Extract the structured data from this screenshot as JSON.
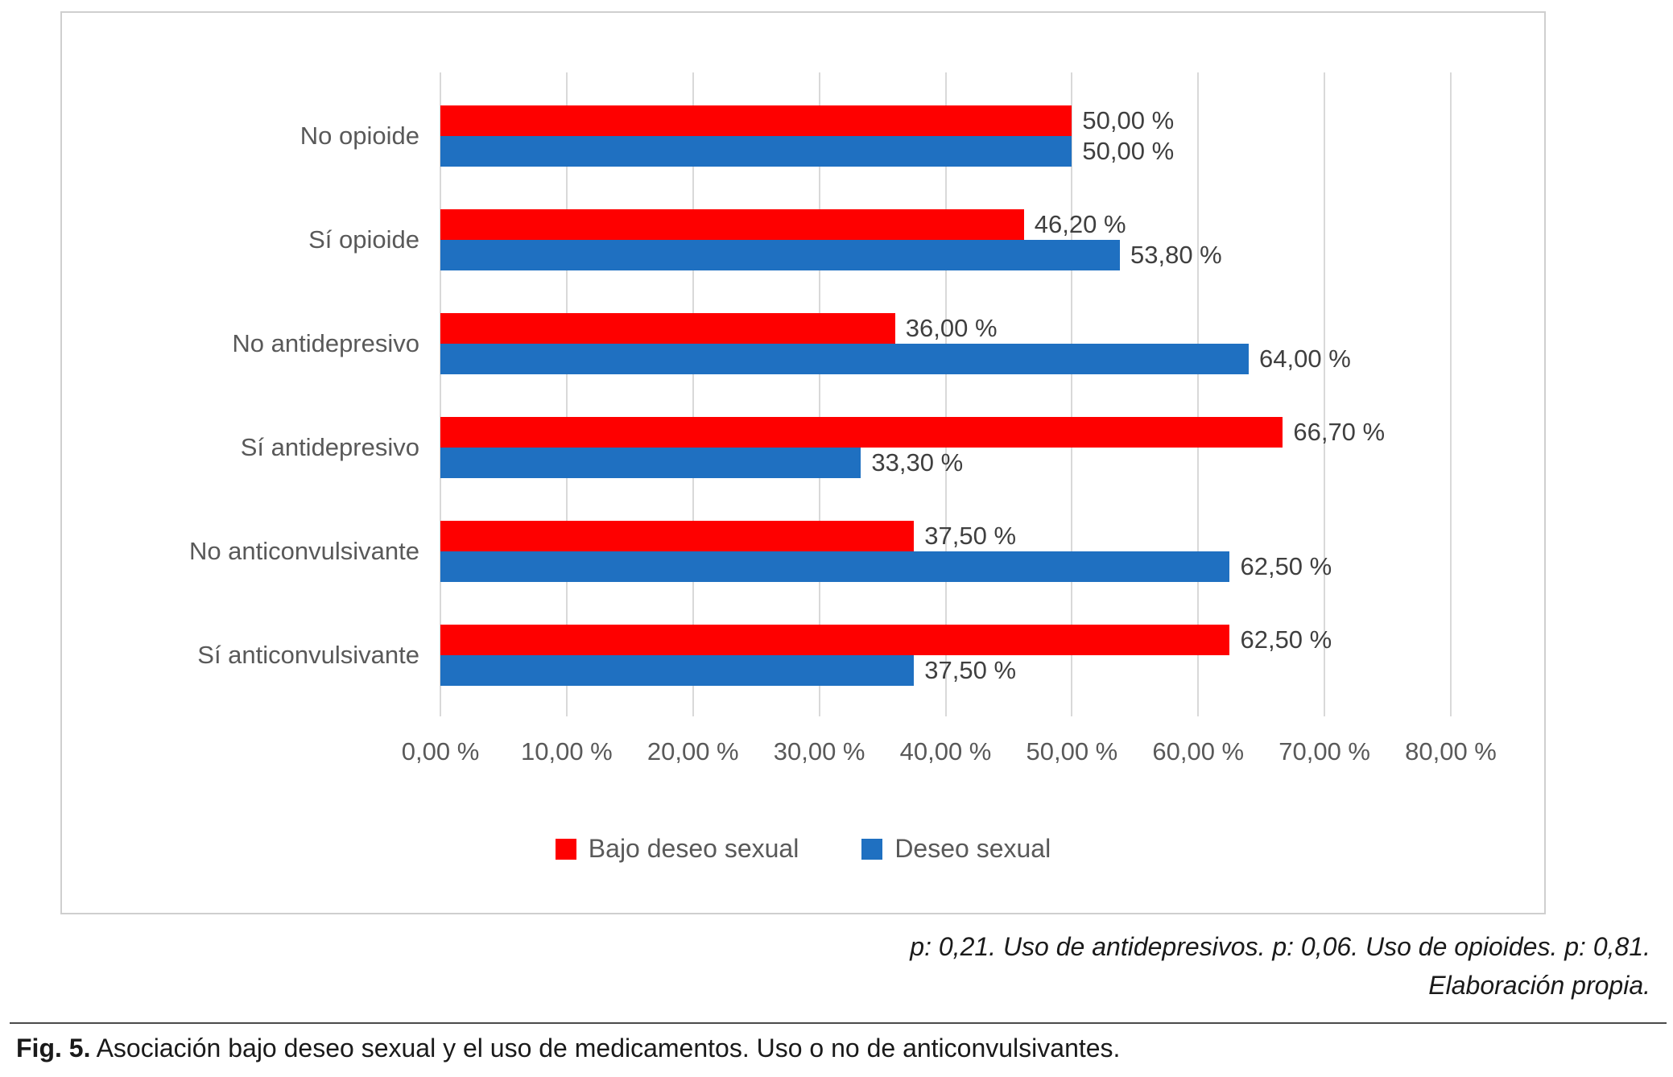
{
  "chart_data": {
    "type": "bar",
    "orientation": "horizontal",
    "title": "",
    "categories": [
      "No opioide",
      "Sí opioide",
      "No antidepresivo",
      "Sí antidepresivo",
      "No anticonvulsivante",
      "Sí anticonvulsivante"
    ],
    "series": [
      {
        "name": "Bajo deseo sexual",
        "color": "#fe0000",
        "values": [
          50.0,
          46.2,
          36.0,
          66.7,
          37.5,
          62.5
        ],
        "labels": [
          "50,00 %",
          "46,20 %",
          "36,00 %",
          "66,70 %",
          "37,50 %",
          "62,50 %"
        ]
      },
      {
        "name": "Deseo sexual",
        "color": "#1f70c1",
        "values": [
          50.0,
          53.8,
          64.0,
          33.3,
          62.5,
          37.5
        ],
        "labels": [
          "50,00 %",
          "53,80 %",
          "64,00 %",
          "33,30 %",
          "62,50 %",
          "37,50 %"
        ]
      }
    ],
    "x_axis": {
      "min": 0,
      "max": 80,
      "tick_step": 10,
      "tick_labels": [
        "0,00 %",
        "10,00 %",
        "20,00 %",
        "30,00 %",
        "40,00 %",
        "50,00 %",
        "60,00 %",
        "70,00 %",
        "80,00 %"
      ]
    },
    "grid": true,
    "gridline_color": "#d9d9d9",
    "legend_position": "bottom"
  },
  "notes": {
    "line1": "p: 0,21. Uso de antidepresivos. p: 0,06. Uso de opioides. p: 0,81.",
    "line2": "Elaboración propia."
  },
  "caption": {
    "label": "Fig. 5.",
    "text": " Asociación bajo deseo sexual y el uso de medicamentos. Uso o no de anticonvulsivantes."
  }
}
